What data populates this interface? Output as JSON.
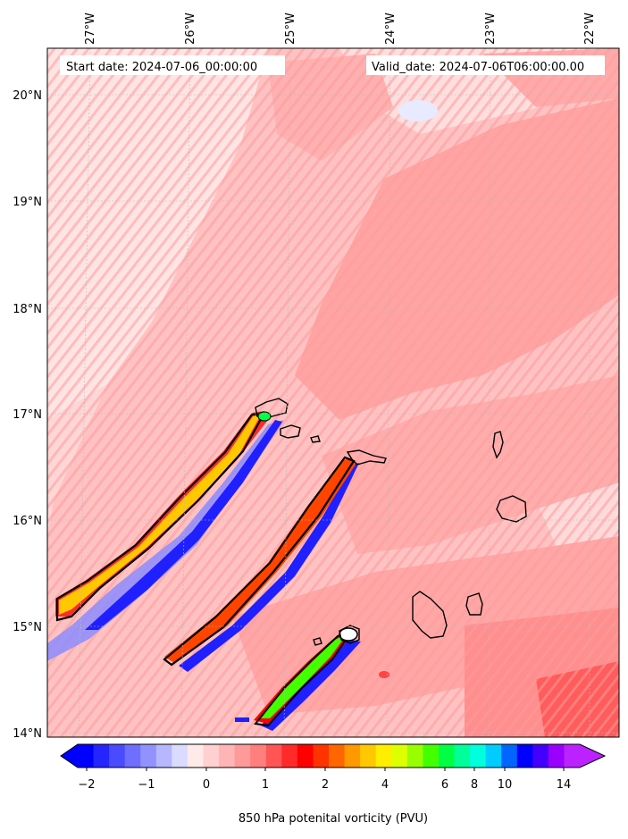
{
  "map": {
    "start_date_label": "Start date: 2024-07-06_00:00:00",
    "valid_date_label": "Valid_date: 2024-07-06T06:00:00.00",
    "lon_labels": [
      "27°W",
      "26°W",
      "25°W",
      "24°W",
      "23°W",
      "22°W"
    ],
    "lat_labels": [
      "20°N",
      "19°N",
      "18°N",
      "17°N",
      "16°N",
      "15°N",
      "14°N"
    ],
    "variable": "850 hPa potential vorticity",
    "islands": [
      "Santo Antão",
      "São Vicente",
      "Santa Luzia",
      "São Nicolau",
      "Sal",
      "Boa Vista",
      "Maio",
      "Santiago",
      "Fogo",
      "Brava"
    ]
  },
  "colorbar": {
    "label": "850 hPa potenital vorticity (PVU)",
    "tick_labels": [
      "−2",
      "−1",
      "0",
      "1",
      "2",
      "4",
      "6",
      "8",
      "10",
      "14"
    ],
    "colors": [
      "#0000ff",
      "#2525ff",
      "#4a4aff",
      "#6e6eff",
      "#9292ff",
      "#b7b7ff",
      "#dbdbff",
      "#ffeaea",
      "#ffd0d0",
      "#ffb5b5",
      "#ff9a9a",
      "#ff7f7f",
      "#ff5555",
      "#ff2a2a",
      "#ff0000",
      "#ff3300",
      "#ff6600",
      "#ff9900",
      "#ffc800",
      "#ffee00",
      "#ddff00",
      "#99ff00",
      "#44ff00",
      "#00ff44",
      "#00ff99",
      "#00ffdd",
      "#00ccff",
      "#0066ff",
      "#0000ff",
      "#4400ff",
      "#9900ff",
      "#bb22ff"
    ],
    "extend_low_color": "#0000ff",
    "extend_high_color": "#bb22ff"
  },
  "colors": {
    "background_field": "#ffbcbc",
    "light_field": "#ffe0e0",
    "mid_field": "#ff9d9d",
    "coast": "#000000"
  }
}
